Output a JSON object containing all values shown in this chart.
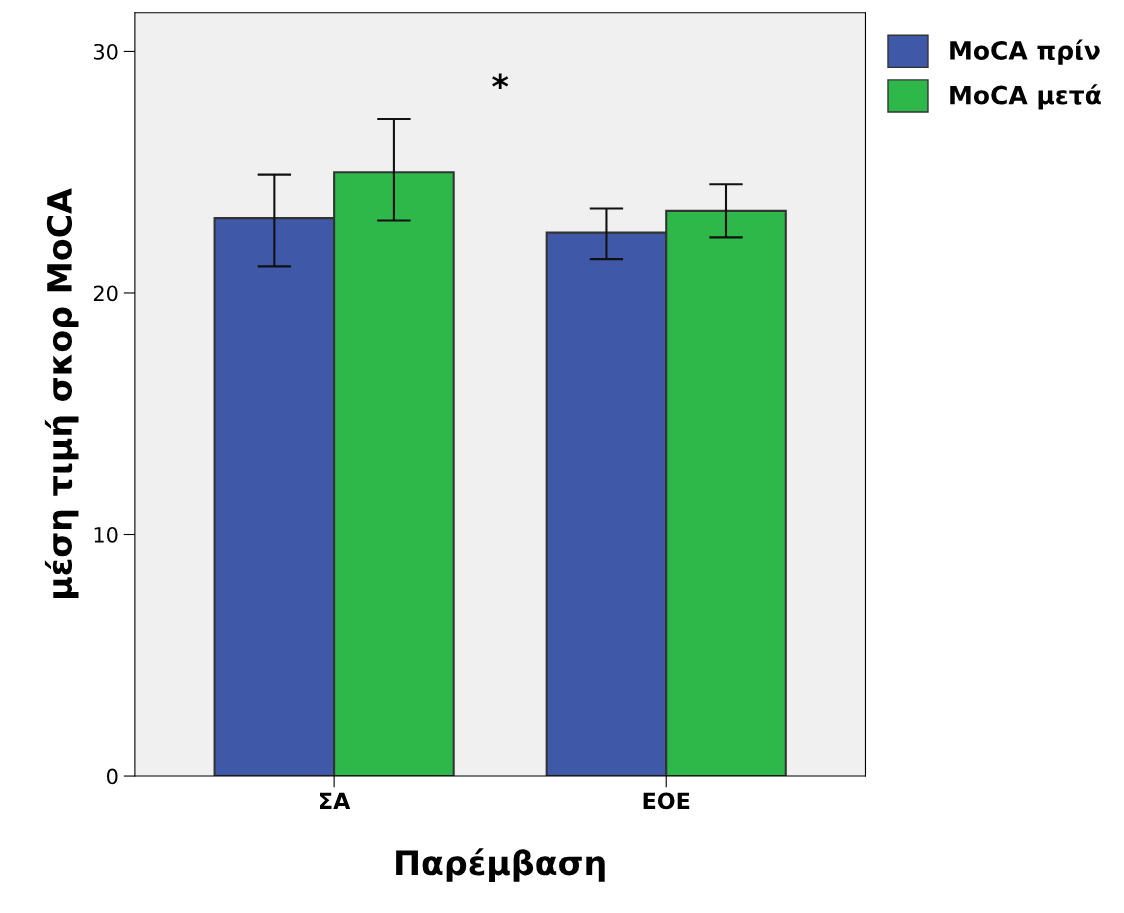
{
  "chart_data": {
    "type": "bar",
    "xlabel": "Παρέμβαση",
    "ylabel": "μέση τιμή σκορ MoCA",
    "categories": [
      "ΣΑ",
      "ΕΟΕ"
    ],
    "series": [
      {
        "name": "MoCA πρίν",
        "color": "#3f58a8",
        "values": [
          23.1,
          22.5
        ],
        "errors": [
          [
            21.1,
            24.9
          ],
          [
            21.4,
            23.5
          ]
        ]
      },
      {
        "name": "MoCA μετά",
        "color": "#2eb84a",
        "values": [
          25.0,
          23.4
        ],
        "errors": [
          [
            23.0,
            27.2
          ],
          [
            22.3,
            24.5
          ]
        ]
      }
    ],
    "ylim": [
      0,
      31.6
    ],
    "yticks": [
      0,
      10,
      20,
      30
    ],
    "grid": false,
    "legend": "top right",
    "annotations": [
      "*"
    ]
  }
}
